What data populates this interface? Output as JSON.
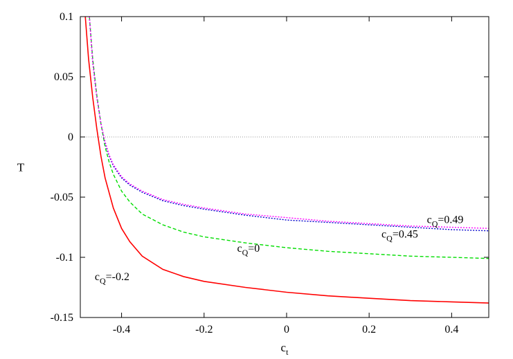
{
  "chart_data": {
    "type": "line",
    "title": "",
    "xlabel": "c",
    "xlabel_sub": "t",
    "ylabel": "T",
    "xlim": [
      -0.5,
      0.49
    ],
    "ylim": [
      -0.15,
      0.1
    ],
    "grid": false,
    "legend": "none",
    "x_ticks": [
      -0.4,
      -0.2,
      0,
      0.2,
      0.4
    ],
    "x_tick_labels": [
      "-0.4",
      "-0.2",
      "0",
      "0.2",
      "0.4"
    ],
    "y_ticks": [
      -0.15,
      -0.1,
      -0.05,
      0,
      0.05,
      0.1
    ],
    "y_tick_labels": [
      "-0.15",
      "-0.1",
      "-0.05",
      "0",
      "0.05",
      "0.1"
    ],
    "reference_line": {
      "y": 0,
      "color": "#999999",
      "style": "dotted"
    },
    "series": [
      {
        "label_main": "c",
        "label_sub": "Q",
        "label_suffix": "=-0.2",
        "color": "#ff0000",
        "dash": "solid",
        "x": [
          -0.488,
          -0.48,
          -0.47,
          -0.46,
          -0.45,
          -0.44,
          -0.42,
          -0.4,
          -0.38,
          -0.35,
          -0.3,
          -0.25,
          -0.2,
          -0.1,
          0.0,
          0.1,
          0.2,
          0.3,
          0.4,
          0.49
        ],
        "y": [
          0.1,
          0.065,
          0.033,
          0.007,
          -0.016,
          -0.034,
          -0.059,
          -0.076,
          -0.087,
          -0.099,
          -0.11,
          -0.116,
          -0.12,
          -0.125,
          -0.129,
          -0.132,
          -0.134,
          -0.136,
          -0.137,
          -0.138
        ]
      },
      {
        "label_main": "c",
        "label_sub": "Q",
        "label_suffix": "=0",
        "color": "#00dd00",
        "dash": "dashed",
        "x": [
          -0.478,
          -0.47,
          -0.46,
          -0.45,
          -0.44,
          -0.43,
          -0.42,
          -0.4,
          -0.38,
          -0.35,
          -0.3,
          -0.25,
          -0.2,
          -0.1,
          0.0,
          0.1,
          0.2,
          0.3,
          0.4,
          0.49
        ],
        "y": [
          0.1,
          0.065,
          0.035,
          0.011,
          -0.008,
          -0.021,
          -0.031,
          -0.045,
          -0.054,
          -0.064,
          -0.073,
          -0.079,
          -0.083,
          -0.088,
          -0.092,
          -0.095,
          -0.097,
          -0.099,
          -0.1,
          -0.101
        ]
      },
      {
        "label_main": "c",
        "label_sub": "Q",
        "label_suffix": "=0.45",
        "color": "#0000cc",
        "dash": "dotted",
        "x": [
          -0.478,
          -0.47,
          -0.46,
          -0.45,
          -0.44,
          -0.43,
          -0.42,
          -0.4,
          -0.38,
          -0.35,
          -0.3,
          -0.25,
          -0.2,
          -0.1,
          0.0,
          0.1,
          0.2,
          0.3,
          0.4,
          0.49
        ],
        "y": [
          0.1,
          0.062,
          0.033,
          0.011,
          -0.005,
          -0.016,
          -0.024,
          -0.034,
          -0.04,
          -0.046,
          -0.053,
          -0.057,
          -0.06,
          -0.065,
          -0.069,
          -0.071,
          -0.073,
          -0.075,
          -0.077,
          -0.078
        ]
      },
      {
        "label_main": "c",
        "label_sub": "Q",
        "label_suffix": "=0.49",
        "color": "#ff00ff",
        "dash": "dotted",
        "x": [
          -0.478,
          -0.47,
          -0.46,
          -0.45,
          -0.44,
          -0.43,
          -0.42,
          -0.4,
          -0.38,
          -0.35,
          -0.3,
          -0.25,
          -0.2,
          -0.1,
          0.0,
          0.1,
          0.2,
          0.3,
          0.4,
          0.49
        ],
        "y": [
          0.1,
          0.062,
          0.033,
          0.011,
          -0.004,
          -0.015,
          -0.023,
          -0.033,
          -0.039,
          -0.045,
          -0.052,
          -0.056,
          -0.059,
          -0.064,
          -0.067,
          -0.07,
          -0.072,
          -0.074,
          -0.075,
          -0.076
        ]
      }
    ],
    "annotations": [
      {
        "text_main": "c",
        "text_sub": "Q",
        "text_suffix": "=0.49",
        "series_index": 3
      },
      {
        "text_main": "c",
        "text_sub": "Q",
        "text_suffix": "=0.45",
        "series_index": 2
      },
      {
        "text_main": "c",
        "text_sub": "Q",
        "text_suffix": "=0",
        "series_index": 1
      },
      {
        "text_main": "c",
        "text_sub": "Q",
        "text_suffix": "=-0.2",
        "series_index": 0
      }
    ]
  }
}
